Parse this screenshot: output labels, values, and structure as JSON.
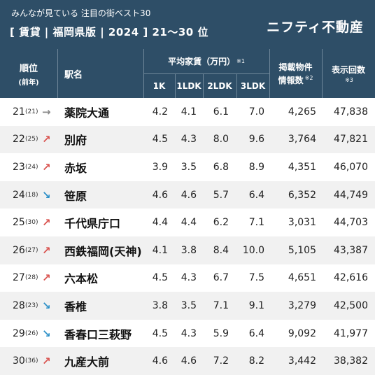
{
  "header": {
    "subtitle": "みんなが見ている 注目の街ベスト30",
    "title": "[ 賃貸 | 福岡県版 | 2024 ]   21〜30 位",
    "brand": "ニフティ不動産"
  },
  "columns": {
    "rank": "順位",
    "rank_sub": "(前年)",
    "station": "駅名",
    "rent_group": "平均家賃（万円）",
    "rent_note": "※1",
    "c1k": "1K",
    "c1ldk": "1LDK",
    "c2ldk": "2LDK",
    "c3ldk": "3LDK",
    "listings_l1": "掲載物件",
    "listings_l2": "情報数",
    "listings_note": "※2",
    "views": "表示回数",
    "views_note": "※3"
  },
  "colors": {
    "header_bg": "#2e4e67",
    "up": "#d9534f",
    "down": "#2b8fc7",
    "same": "#888888"
  },
  "rows": [
    {
      "rank": "21",
      "prev": "(21)",
      "trend": "same",
      "arrow": "→",
      "name": "薬院大通",
      "k1": "4.2",
      "ldk1": "4.1",
      "ldk2": "6.1",
      "ldk3": "7.0",
      "listings": "4,265",
      "views": "47,838"
    },
    {
      "rank": "22",
      "prev": "(25)",
      "trend": "up",
      "arrow": "↗",
      "name": "別府",
      "k1": "4.5",
      "ldk1": "4.3",
      "ldk2": "8.0",
      "ldk3": "9.6",
      "listings": "3,764",
      "views": "47,821"
    },
    {
      "rank": "23",
      "prev": "(24)",
      "trend": "up",
      "arrow": "↗",
      "name": "赤坂",
      "k1": "3.9",
      "ldk1": "3.5",
      "ldk2": "6.8",
      "ldk3": "8.9",
      "listings": "4,351",
      "views": "46,070"
    },
    {
      "rank": "24",
      "prev": "(18)",
      "trend": "down",
      "arrow": "↘",
      "name": "笹原",
      "k1": "4.6",
      "ldk1": "4.6",
      "ldk2": "5.7",
      "ldk3": "6.4",
      "listings": "6,352",
      "views": "44,749"
    },
    {
      "rank": "25",
      "prev": "(30)",
      "trend": "up",
      "arrow": "↗",
      "name": "千代県庁口",
      "k1": "4.4",
      "ldk1": "4.4",
      "ldk2": "6.2",
      "ldk3": "7.1",
      "listings": "3,031",
      "views": "44,703"
    },
    {
      "rank": "26",
      "prev": "(27)",
      "trend": "up",
      "arrow": "↗",
      "name": "西鉄福岡(天神)",
      "k1": "4.1",
      "ldk1": "3.8",
      "ldk2": "8.4",
      "ldk3": "10.0",
      "listings": "5,105",
      "views": "43,387"
    },
    {
      "rank": "27",
      "prev": "(28)",
      "trend": "up",
      "arrow": "↗",
      "name": "六本松",
      "k1": "4.5",
      "ldk1": "4.3",
      "ldk2": "6.7",
      "ldk3": "7.5",
      "listings": "4,651",
      "views": "42,616"
    },
    {
      "rank": "28",
      "prev": "(23)",
      "trend": "down",
      "arrow": "↘",
      "name": "香椎",
      "k1": "3.8",
      "ldk1": "3.5",
      "ldk2": "7.1",
      "ldk3": "9.1",
      "listings": "3,279",
      "views": "42,500"
    },
    {
      "rank": "29",
      "prev": "(26)",
      "trend": "down",
      "arrow": "↘",
      "name": "香春口三萩野",
      "k1": "4.5",
      "ldk1": "4.3",
      "ldk2": "5.9",
      "ldk3": "6.4",
      "listings": "9,092",
      "views": "41,977"
    },
    {
      "rank": "30",
      "prev": "(36)",
      "trend": "up",
      "arrow": "↗",
      "name": "九産大前",
      "k1": "4.6",
      "ldk1": "4.6",
      "ldk2": "7.2",
      "ldk3": "8.2",
      "listings": "3,442",
      "views": "38,382"
    }
  ]
}
